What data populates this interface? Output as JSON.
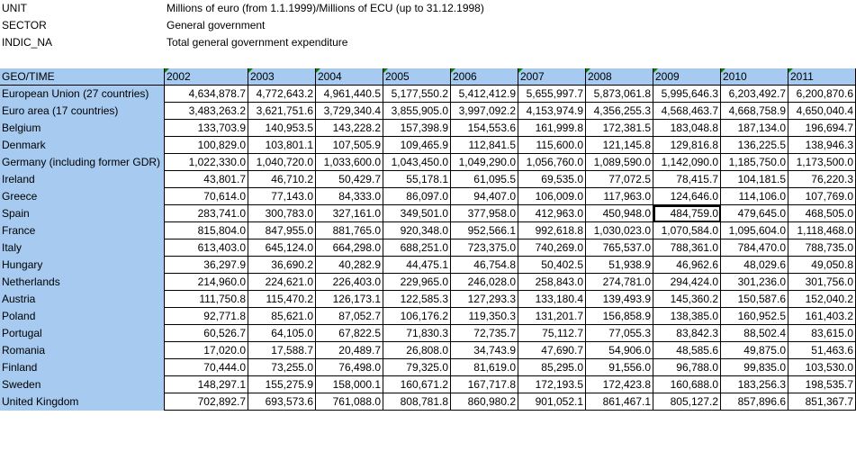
{
  "meta": [
    {
      "label": "UNIT",
      "value": "Millions of euro (from 1.1.1999)/Millions of ECU (up to 31.12.1998)"
    },
    {
      "label": "SECTOR",
      "value": "General government"
    },
    {
      "label": "INDIC_NA",
      "value": "Total general government expenditure"
    }
  ],
  "table": {
    "corner": "GEO/TIME",
    "columns": [
      "2002",
      "2003",
      "2004",
      "2005",
      "2006",
      "2007",
      "2008",
      "2009",
      "2010",
      "2011"
    ],
    "rows": [
      {
        "geo": "European Union (27 countries)",
        "values": [
          "4,634,878.7",
          "4,772,643.2",
          "4,961,440.5",
          "5,177,550.2",
          "5,412,412.9",
          "5,655,997.7",
          "5,873,061.8",
          "5,995,646.3",
          "6,203,492.7",
          "6,200,870.6"
        ]
      },
      {
        "geo": "Euro area (17 countries)",
        "values": [
          "3,483,263.2",
          "3,621,751.6",
          "3,729,340.4",
          "3,855,905.0",
          "3,997,092.2",
          "4,153,974.9",
          "4,356,255.3",
          "4,568,463.7",
          "4,668,758.9",
          "4,650,040.4"
        ]
      },
      {
        "geo": "Belgium",
        "values": [
          "133,703.9",
          "140,953.5",
          "143,228.2",
          "157,398.9",
          "154,553.6",
          "161,999.8",
          "172,381.5",
          "183,048.8",
          "187,134.0",
          "196,694.7"
        ]
      },
      {
        "geo": "Denmark",
        "values": [
          "100,829.0",
          "103,801.1",
          "107,505.9",
          "109,465.9",
          "112,841.5",
          "115,600.0",
          "121,145.8",
          "129,816.8",
          "136,225.5",
          "138,946.3"
        ]
      },
      {
        "geo": "Germany (including  former GDR)",
        "values": [
          "1,022,330.0",
          "1,040,720.0",
          "1,033,600.0",
          "1,043,450.0",
          "1,049,290.0",
          "1,056,760.0",
          "1,089,590.0",
          "1,142,090.0",
          "1,185,750.0",
          "1,173,500.0"
        ]
      },
      {
        "geo": "Ireland",
        "values": [
          "43,801.7",
          "46,710.2",
          "50,429.7",
          "55,178.1",
          "61,095.5",
          "69,535.0",
          "77,072.5",
          "78,415.7",
          "104,181.5",
          "76,220.3"
        ]
      },
      {
        "geo": "Greece",
        "values": [
          "70,614.0",
          "77,143.0",
          "84,333.0",
          "86,097.0",
          "94,407.0",
          "106,009.0",
          "117,963.0",
          "124,646.0",
          "114,106.0",
          "107,769.0"
        ]
      },
      {
        "geo": "Spain",
        "values": [
          "283,741.0",
          "300,783.0",
          "327,161.0",
          "349,501.0",
          "377,958.0",
          "412,963.0",
          "450,948.0",
          "484,759.0",
          "479,645.0",
          "468,505.0"
        ]
      },
      {
        "geo": "France",
        "values": [
          "815,804.0",
          "847,955.0",
          "881,765.0",
          "920,348.0",
          "952,566.1",
          "992,618.8",
          "1,030,023.0",
          "1,070,584.0",
          "1,095,604.0",
          "1,118,468.0"
        ]
      },
      {
        "geo": "Italy",
        "values": [
          "613,403.0",
          "645,124.0",
          "664,298.0",
          "688,251.0",
          "723,375.0",
          "740,269.0",
          "765,537.0",
          "788,361.0",
          "784,470.0",
          "788,735.0"
        ]
      },
      {
        "geo": "Hungary",
        "values": [
          "36,297.9",
          "36,690.2",
          "40,282.9",
          "44,475.1",
          "46,754.8",
          "50,402.5",
          "51,938.9",
          "46,962.6",
          "48,029.6",
          "49,050.8"
        ]
      },
      {
        "geo": "Netherlands",
        "values": [
          "214,960.0",
          "224,621.0",
          "226,403.0",
          "229,965.0",
          "246,028.0",
          "258,843.0",
          "274,781.0",
          "294,424.0",
          "301,236.0",
          "301,756.0"
        ]
      },
      {
        "geo": "Austria",
        "values": [
          "111,750.8",
          "115,470.2",
          "126,173.1",
          "122,585.3",
          "127,293.3",
          "133,180.4",
          "139,493.9",
          "145,360.2",
          "150,587.6",
          "152,040.2"
        ]
      },
      {
        "geo": "Poland",
        "values": [
          "92,771.8",
          "85,621.0",
          "87,052.7",
          "106,176.2",
          "119,350.3",
          "131,201.7",
          "156,858.9",
          "138,385.0",
          "160,952.5",
          "161,403.2"
        ]
      },
      {
        "geo": "Portugal",
        "values": [
          "60,526.7",
          "64,105.0",
          "67,822.5",
          "71,830.3",
          "72,735.7",
          "75,112.7",
          "77,055.3",
          "83,842.3",
          "88,502.4",
          "83,615.0"
        ]
      },
      {
        "geo": "Romania",
        "values": [
          "17,020.0",
          "17,588.7",
          "20,489.7",
          "26,808.0",
          "34,743.9",
          "47,690.7",
          "54,906.0",
          "48,585.6",
          "49,875.0",
          "51,463.6"
        ]
      },
      {
        "geo": "Finland",
        "values": [
          "70,444.0",
          "73,255.0",
          "76,498.0",
          "79,325.0",
          "81,619.0",
          "85,295.0",
          "91,556.0",
          "96,788.0",
          "99,835.0",
          "103,530.0"
        ]
      },
      {
        "geo": "Sweden",
        "values": [
          "148,297.1",
          "155,275.9",
          "158,000.1",
          "160,671.2",
          "167,717.8",
          "172,193.5",
          "172,423.8",
          "160,688.0",
          "183,256.3",
          "198,535.7"
        ]
      },
      {
        "geo": "United Kingdom",
        "values": [
          "702,892.7",
          "693,573.6",
          "761,088.0",
          "808,781.8",
          "860,980.2",
          "901,052.1",
          "861,467.1",
          "805,127.2",
          "857,896.6",
          "851,367.7"
        ]
      }
    ]
  }
}
